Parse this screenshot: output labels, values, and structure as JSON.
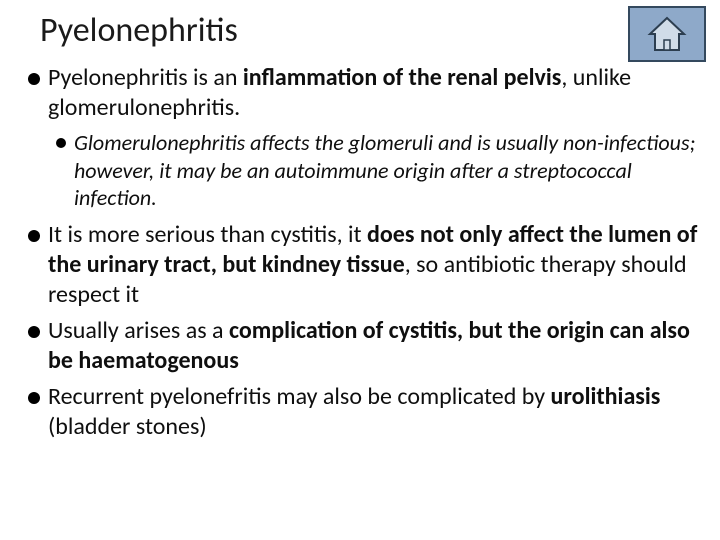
{
  "title": "Pyelonephritis",
  "home_button": {
    "background": "#8ea9c9",
    "border_color": "#34495e",
    "icon_stroke": "#2c3e50",
    "icon_fill": "#d0dce8"
  },
  "bullets": [
    {
      "level": 1,
      "runs": [
        {
          "t": "Pyelonephritis is an ",
          "b": false
        },
        {
          "t": "inflammation of the renal pelvis",
          "b": true
        },
        {
          "t": ", unlike glomerulonephritis.",
          "b": false
        }
      ]
    },
    {
      "level": 2,
      "runs": [
        {
          "t": "Glomerulonephritis affects the glomeruli and is usually non-infectious; however, it may be an autoimmune origin after a streptococcal infection.",
          "b": false
        }
      ]
    },
    {
      "level": 1,
      "runs": [
        {
          "t": "It is more serious than cystitis, it ",
          "b": false
        },
        {
          "t": "does not only affect the lumen of the urinary tract, but kindney tissue",
          "b": true
        },
        {
          "t": ", so antibiotic therapy should respect it",
          "b": false
        }
      ]
    },
    {
      "level": 1,
      "runs": [
        {
          "t": "Usually arises as a ",
          "b": false
        },
        {
          "t": "complication of cystitis, but the origin can also be haematogenous",
          "b": true
        }
      ]
    },
    {
      "level": 1,
      "runs": [
        {
          "t": "Recurrent pyelonefritis may also be complicated by ",
          "b": false
        },
        {
          "t": "urolithiasis",
          "b": true
        },
        {
          "t": " (bladder stones)",
          "b": false
        }
      ]
    }
  ],
  "typography": {
    "title_fontsize": 34,
    "l1_fontsize": 24,
    "l2_fontsize": 22,
    "l2_italic": true,
    "font_family": "Calibri",
    "text_color": "#0f0f0f"
  }
}
